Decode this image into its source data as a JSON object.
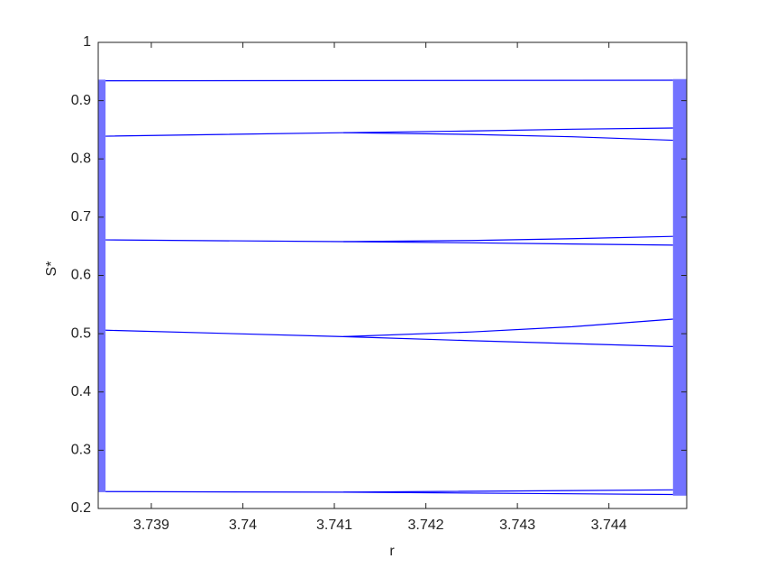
{
  "chart_data": {
    "type": "line",
    "x_label": "r",
    "y_label": "S*",
    "xlim": [
      3.73842,
      3.74485
    ],
    "ylim": [
      0.2,
      1
    ],
    "xticks": [
      3.739,
      3.74,
      3.741,
      3.742,
      3.743,
      3.744
    ],
    "yticks": [
      0.2,
      0.3,
      0.4,
      0.5,
      0.6,
      0.7,
      0.8,
      0.9,
      1
    ],
    "grid": false,
    "color": "#0000ff",
    "series": [
      {
        "x": [
          3.7385,
          3.7447
        ],
        "values": [
          0.934,
          0.935
        ]
      },
      {
        "x": [
          3.7385,
          3.7411,
          3.7425,
          3.7436,
          3.7447
        ],
        "values": [
          0.839,
          0.845,
          0.848,
          0.851,
          0.853
        ]
      },
      {
        "x": [
          3.7411,
          3.7425,
          3.7436,
          3.7447
        ],
        "values": [
          0.845,
          0.842,
          0.838,
          0.832
        ]
      },
      {
        "x": [
          3.7385,
          3.7411,
          3.7425,
          3.7436,
          3.7447
        ],
        "values": [
          0.661,
          0.658,
          0.66,
          0.663,
          0.667
        ]
      },
      {
        "x": [
          3.7411,
          3.7425,
          3.7436,
          3.7447
        ],
        "values": [
          0.658,
          0.656,
          0.654,
          0.652
        ]
      },
      {
        "x": [
          3.7385,
          3.7411,
          3.7425,
          3.7436,
          3.7447
        ],
        "values": [
          0.506,
          0.495,
          0.503,
          0.512,
          0.525
        ]
      },
      {
        "x": [
          3.7411,
          3.7425,
          3.7436,
          3.7447
        ],
        "values": [
          0.495,
          0.488,
          0.483,
          0.478
        ]
      },
      {
        "x": [
          3.7385,
          3.7411,
          3.7447
        ],
        "values": [
          0.229,
          0.228,
          0.232
        ]
      },
      {
        "x": [
          3.7411,
          3.7447
        ],
        "values": [
          0.228,
          0.224
        ]
      }
    ],
    "bands": [
      {
        "x": [
          3.73842,
          3.7385
        ],
        "y": [
          0.228,
          0.936
        ]
      },
      {
        "x": [
          3.7447,
          3.74485
        ],
        "y": [
          0.222,
          0.937
        ]
      }
    ]
  }
}
